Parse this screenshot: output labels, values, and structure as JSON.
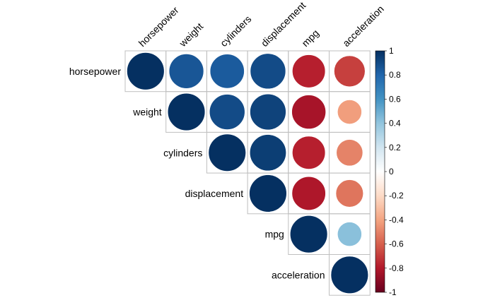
{
  "chart_data": {
    "type": "heatmap",
    "variables": [
      "horsepower",
      "weight",
      "cylinders",
      "displacement",
      "mpg",
      "acceleration"
    ],
    "upper_triangle": true,
    "matrix": [
      [
        1.0,
        0.86,
        0.84,
        0.9,
        -0.78,
        -0.69
      ],
      [
        0.86,
        1.0,
        0.9,
        0.93,
        -0.83,
        -0.42
      ],
      [
        0.84,
        0.9,
        1.0,
        0.95,
        -0.78,
        -0.5
      ],
      [
        0.9,
        0.93,
        0.95,
        1.0,
        -0.81,
        -0.54
      ],
      [
        -0.78,
        -0.83,
        -0.78,
        -0.81,
        1.0,
        0.42
      ],
      [
        -0.69,
        -0.42,
        -0.5,
        -0.54,
        0.42,
        1.0
      ]
    ],
    "colorbar": {
      "range": [
        -1,
        1
      ],
      "ticks": [
        "1",
        "0.8",
        "0.6",
        "0.4",
        "0.2",
        "0",
        "-0.2",
        "-0.4",
        "-0.6",
        "-0.8",
        "-1"
      ],
      "palette": [
        "#67001F",
        "#B2182B",
        "#D6604D",
        "#F4A582",
        "#FDDBC7",
        "#FFFFFF",
        "#D1E5F0",
        "#92C5DE",
        "#4393C3",
        "#2166AC",
        "#053061"
      ]
    }
  }
}
